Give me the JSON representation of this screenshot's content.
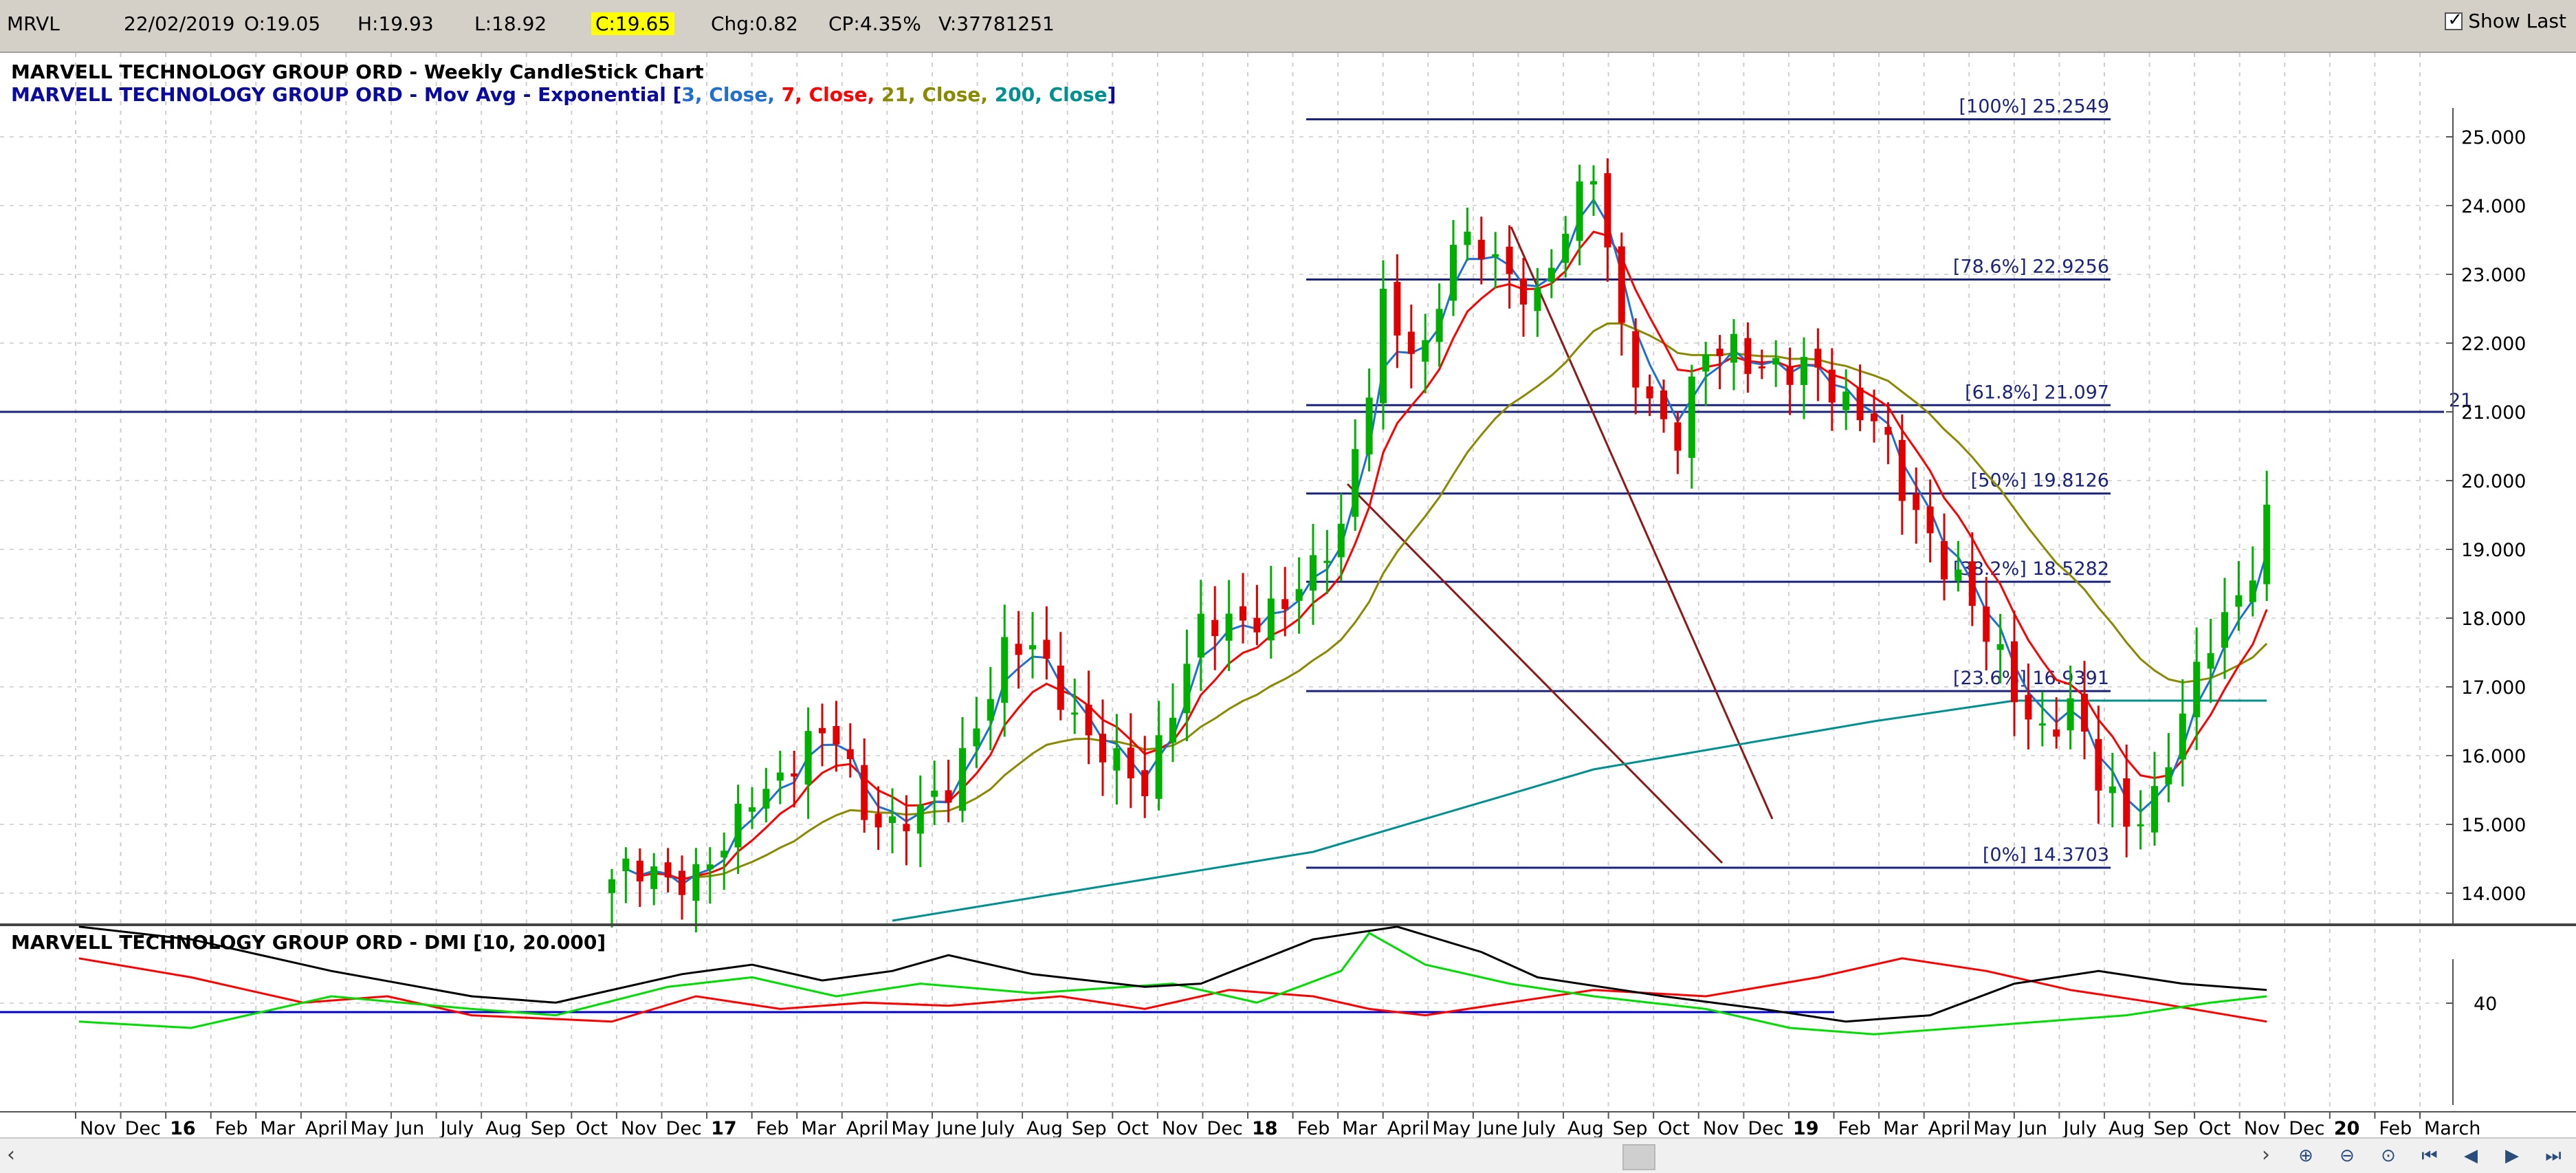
{
  "infobar": {
    "symbol": "MRVL",
    "date": "22/02/2019",
    "open": "O:19.05",
    "high": "H:19.93",
    "low": "L:18.92",
    "close": "C:19.65",
    "change": "Chg:0.82",
    "change_pct": "CP:4.35%",
    "volume": "V:37781251",
    "show_last_label": "Show Last",
    "show_last_checked": true
  },
  "price_panel": {
    "title": "MARVELL TECHNOLOGY GROUP ORD - Weekly CandleStick Chart",
    "ma_prefix": "MARVELL TECHNOLOGY GROUP ORD - Mov Avg - Exponential [",
    "ma_params": [
      {
        "text": "3",
        "color": "#1f6fd1"
      },
      {
        "text": ", Close, ",
        "color": "#1f6fd1"
      },
      {
        "text": "7",
        "color": "#ff0000"
      },
      {
        "text": ", Close, ",
        "color": "#ff0000"
      },
      {
        "text": "21",
        "color": "#8a8a00"
      },
      {
        "text": ", Close, ",
        "color": "#8a8a00"
      },
      {
        "text": "200",
        "color": "#009090"
      },
      {
        "text": ", Close",
        "color": "#009090"
      }
    ],
    "ma_suffix": "]",
    "y_ticks": [
      "25.000",
      "24.000",
      "23.000",
      "22.000",
      "21.000",
      "20.000",
      "19.000",
      "18.000",
      "17.000",
      "16.000",
      "15.000",
      "14.000"
    ],
    "horizontal_line_label": "21",
    "fib_levels": [
      {
        "label": "[100%] 25.2549",
        "value": 25.2549
      },
      {
        "label": "[78.6%] 22.9256",
        "value": 22.9256
      },
      {
        "label": "[61.8%] 21.097",
        "value": 21.097
      },
      {
        "label": "[50%] 19.8126",
        "value": 19.8126
      },
      {
        "label": "[38.2%] 18.5282",
        "value": 18.5282
      },
      {
        "label": "[23.6%] 16.9391",
        "value": 16.9391
      },
      {
        "label": "[0%] 14.3703",
        "value": 14.3703
      }
    ]
  },
  "dmi_panel": {
    "title": "MARVELL TECHNOLOGY GROUP ORD - DMI [10, 20.000]",
    "y_ticks": [
      "40"
    ],
    "line_colors": {
      "adx": "#000000",
      "plus_di": "#00dd00",
      "minus_di": "#ff0000",
      "level": "#0000cc"
    }
  },
  "x_axis": {
    "months": [
      "Nov",
      "Dec",
      "16",
      "Feb",
      "Mar",
      "April",
      "May",
      "Jun",
      "July",
      "Aug",
      "Sep",
      "Oct",
      "Nov",
      "Dec",
      "17",
      "Feb",
      "Mar",
      "April",
      "May",
      "June",
      "July",
      "Aug",
      "Sep",
      "Oct",
      "Nov",
      "Dec",
      "18",
      "Feb",
      "Mar",
      "April",
      "May",
      "June",
      "July",
      "Aug",
      "Sep",
      "Oct",
      "Nov",
      "Dec",
      "19",
      "Feb",
      "Mar",
      "April",
      "May",
      "Jun",
      "July",
      "Aug",
      "Sep",
      "Oct",
      "Nov",
      "Dec",
      "20",
      "Feb",
      "March"
    ],
    "year_labels": [
      "16",
      "17",
      "18",
      "19",
      "20"
    ]
  },
  "scrollbar": {
    "left_arrow": "‹",
    "right_arrow": "›",
    "buttons": [
      "zoom-in",
      "zoom-out",
      "zoom-reset",
      "first",
      "prev",
      "next",
      "last"
    ]
  },
  "chart_data": {
    "type": "candlestick",
    "title": "MARVELL TECHNOLOGY GROUP ORD - Weekly CandleStick Chart",
    "ylim": [
      13.6,
      25.5
    ],
    "grid": true,
    "horizontal_line": 21,
    "moving_averages": [
      {
        "name": "3, Close",
        "color": "#1f6fd1"
      },
      {
        "name": "7, Close",
        "color": "#ff0000"
      },
      {
        "name": "21, Close",
        "color": "#8a8a00"
      },
      {
        "name": "200, Close",
        "color": "#009090"
      }
    ],
    "anchors": [
      [
        0,
        14.1
      ],
      [
        2,
        14.35
      ],
      [
        4,
        14.3
      ],
      [
        6,
        14.2
      ],
      [
        8,
        14.6
      ],
      [
        10,
        15.5
      ],
      [
        12,
        15.7
      ],
      [
        14,
        16.1
      ],
      [
        16,
        16.3
      ],
      [
        18,
        15.3
      ],
      [
        20,
        14.9
      ],
      [
        22,
        15.1
      ],
      [
        24,
        15.6
      ],
      [
        26,
        16.5
      ],
      [
        28,
        17.4
      ],
      [
        30,
        17.6
      ],
      [
        32,
        17.0
      ],
      [
        34,
        16.2
      ],
      [
        36,
        15.8
      ],
      [
        38,
        15.6
      ],
      [
        40,
        16.8
      ],
      [
        42,
        17.8
      ],
      [
        44,
        17.9
      ],
      [
        46,
        18.1
      ],
      [
        48,
        18.2
      ],
      [
        50,
        18.6
      ],
      [
        52,
        19.4
      ],
      [
        54,
        21.5
      ],
      [
        55,
        22.6
      ],
      [
        56,
        22.0
      ],
      [
        58,
        21.8
      ],
      [
        60,
        23.6
      ],
      [
        62,
        23.4
      ],
      [
        64,
        22.8
      ],
      [
        66,
        22.7
      ],
      [
        68,
        23.8
      ],
      [
        70,
        24.4
      ],
      [
        71,
        23.3
      ],
      [
        72,
        22.1
      ],
      [
        74,
        21.2
      ],
      [
        76,
        20.6
      ],
      [
        78,
        21.8
      ],
      [
        80,
        22.0
      ],
      [
        82,
        21.7
      ],
      [
        84,
        21.5
      ],
      [
        86,
        21.6
      ],
      [
        88,
        21.2
      ],
      [
        90,
        20.9
      ],
      [
        92,
        19.8
      ],
      [
        94,
        19.2
      ],
      [
        96,
        18.6
      ],
      [
        98,
        17.7
      ],
      [
        100,
        16.9
      ],
      [
        102,
        16.4
      ],
      [
        104,
        16.7
      ],
      [
        106,
        15.6
      ],
      [
        108,
        15.1
      ],
      [
        110,
        15.4
      ],
      [
        112,
        16.5
      ],
      [
        114,
        17.7
      ],
      [
        116,
        18.4
      ],
      [
        117,
        18.8
      ],
      [
        118,
        19.65
      ]
    ],
    "ema_200": [
      [
        20,
        13.6
      ],
      [
        50,
        14.6
      ],
      [
        70,
        15.8
      ],
      [
        90,
        16.5
      ],
      [
        100,
        16.8
      ],
      [
        118,
        16.8
      ]
    ],
    "dmi": {
      "adx": [
        [
          -38,
          52
        ],
        [
          -30,
          48
        ],
        [
          -20,
          38
        ],
        [
          -10,
          30
        ],
        [
          -4,
          28
        ],
        [
          5,
          37
        ],
        [
          10,
          40
        ],
        [
          15,
          35
        ],
        [
          20,
          38
        ],
        [
          24,
          43
        ],
        [
          30,
          37
        ],
        [
          38,
          33
        ],
        [
          42,
          34
        ],
        [
          50,
          48
        ],
        [
          56,
          52
        ],
        [
          62,
          44
        ],
        [
          66,
          36
        ],
        [
          75,
          30
        ],
        [
          82,
          26
        ],
        [
          88,
          22
        ],
        [
          94,
          24
        ],
        [
          100,
          34
        ],
        [
          106,
          38
        ],
        [
          112,
          34
        ],
        [
          118,
          32
        ]
      ],
      "plus_di": [
        [
          -38,
          22
        ],
        [
          -30,
          20
        ],
        [
          -20,
          30
        ],
        [
          -10,
          26
        ],
        [
          -4,
          24
        ],
        [
          4,
          33
        ],
        [
          10,
          36
        ],
        [
          16,
          30
        ],
        [
          22,
          34
        ],
        [
          30,
          31
        ],
        [
          40,
          34
        ],
        [
          46,
          28
        ],
        [
          52,
          38
        ],
        [
          54,
          50
        ],
        [
          58,
          40
        ],
        [
          64,
          34
        ],
        [
          70,
          30
        ],
        [
          78,
          26
        ],
        [
          84,
          20
        ],
        [
          90,
          18
        ],
        [
          96,
          20
        ],
        [
          102,
          22
        ],
        [
          108,
          24
        ],
        [
          114,
          28
        ],
        [
          118,
          30
        ]
      ],
      "minus_di": [
        [
          -38,
          42
        ],
        [
          -30,
          36
        ],
        [
          -22,
          28
        ],
        [
          -16,
          30
        ],
        [
          -10,
          24
        ],
        [
          0,
          22
        ],
        [
          6,
          30
        ],
        [
          12,
          26
        ],
        [
          18,
          28
        ],
        [
          24,
          27
        ],
        [
          32,
          30
        ],
        [
          38,
          26
        ],
        [
          44,
          32
        ],
        [
          50,
          30
        ],
        [
          54,
          26
        ],
        [
          58,
          24
        ],
        [
          64,
          28
        ],
        [
          70,
          32
        ],
        [
          78,
          30
        ],
        [
          86,
          36
        ],
        [
          92,
          42
        ],
        [
          98,
          38
        ],
        [
          104,
          32
        ],
        [
          110,
          28
        ],
        [
          118,
          22
        ]
      ],
      "level": 25
    }
  }
}
